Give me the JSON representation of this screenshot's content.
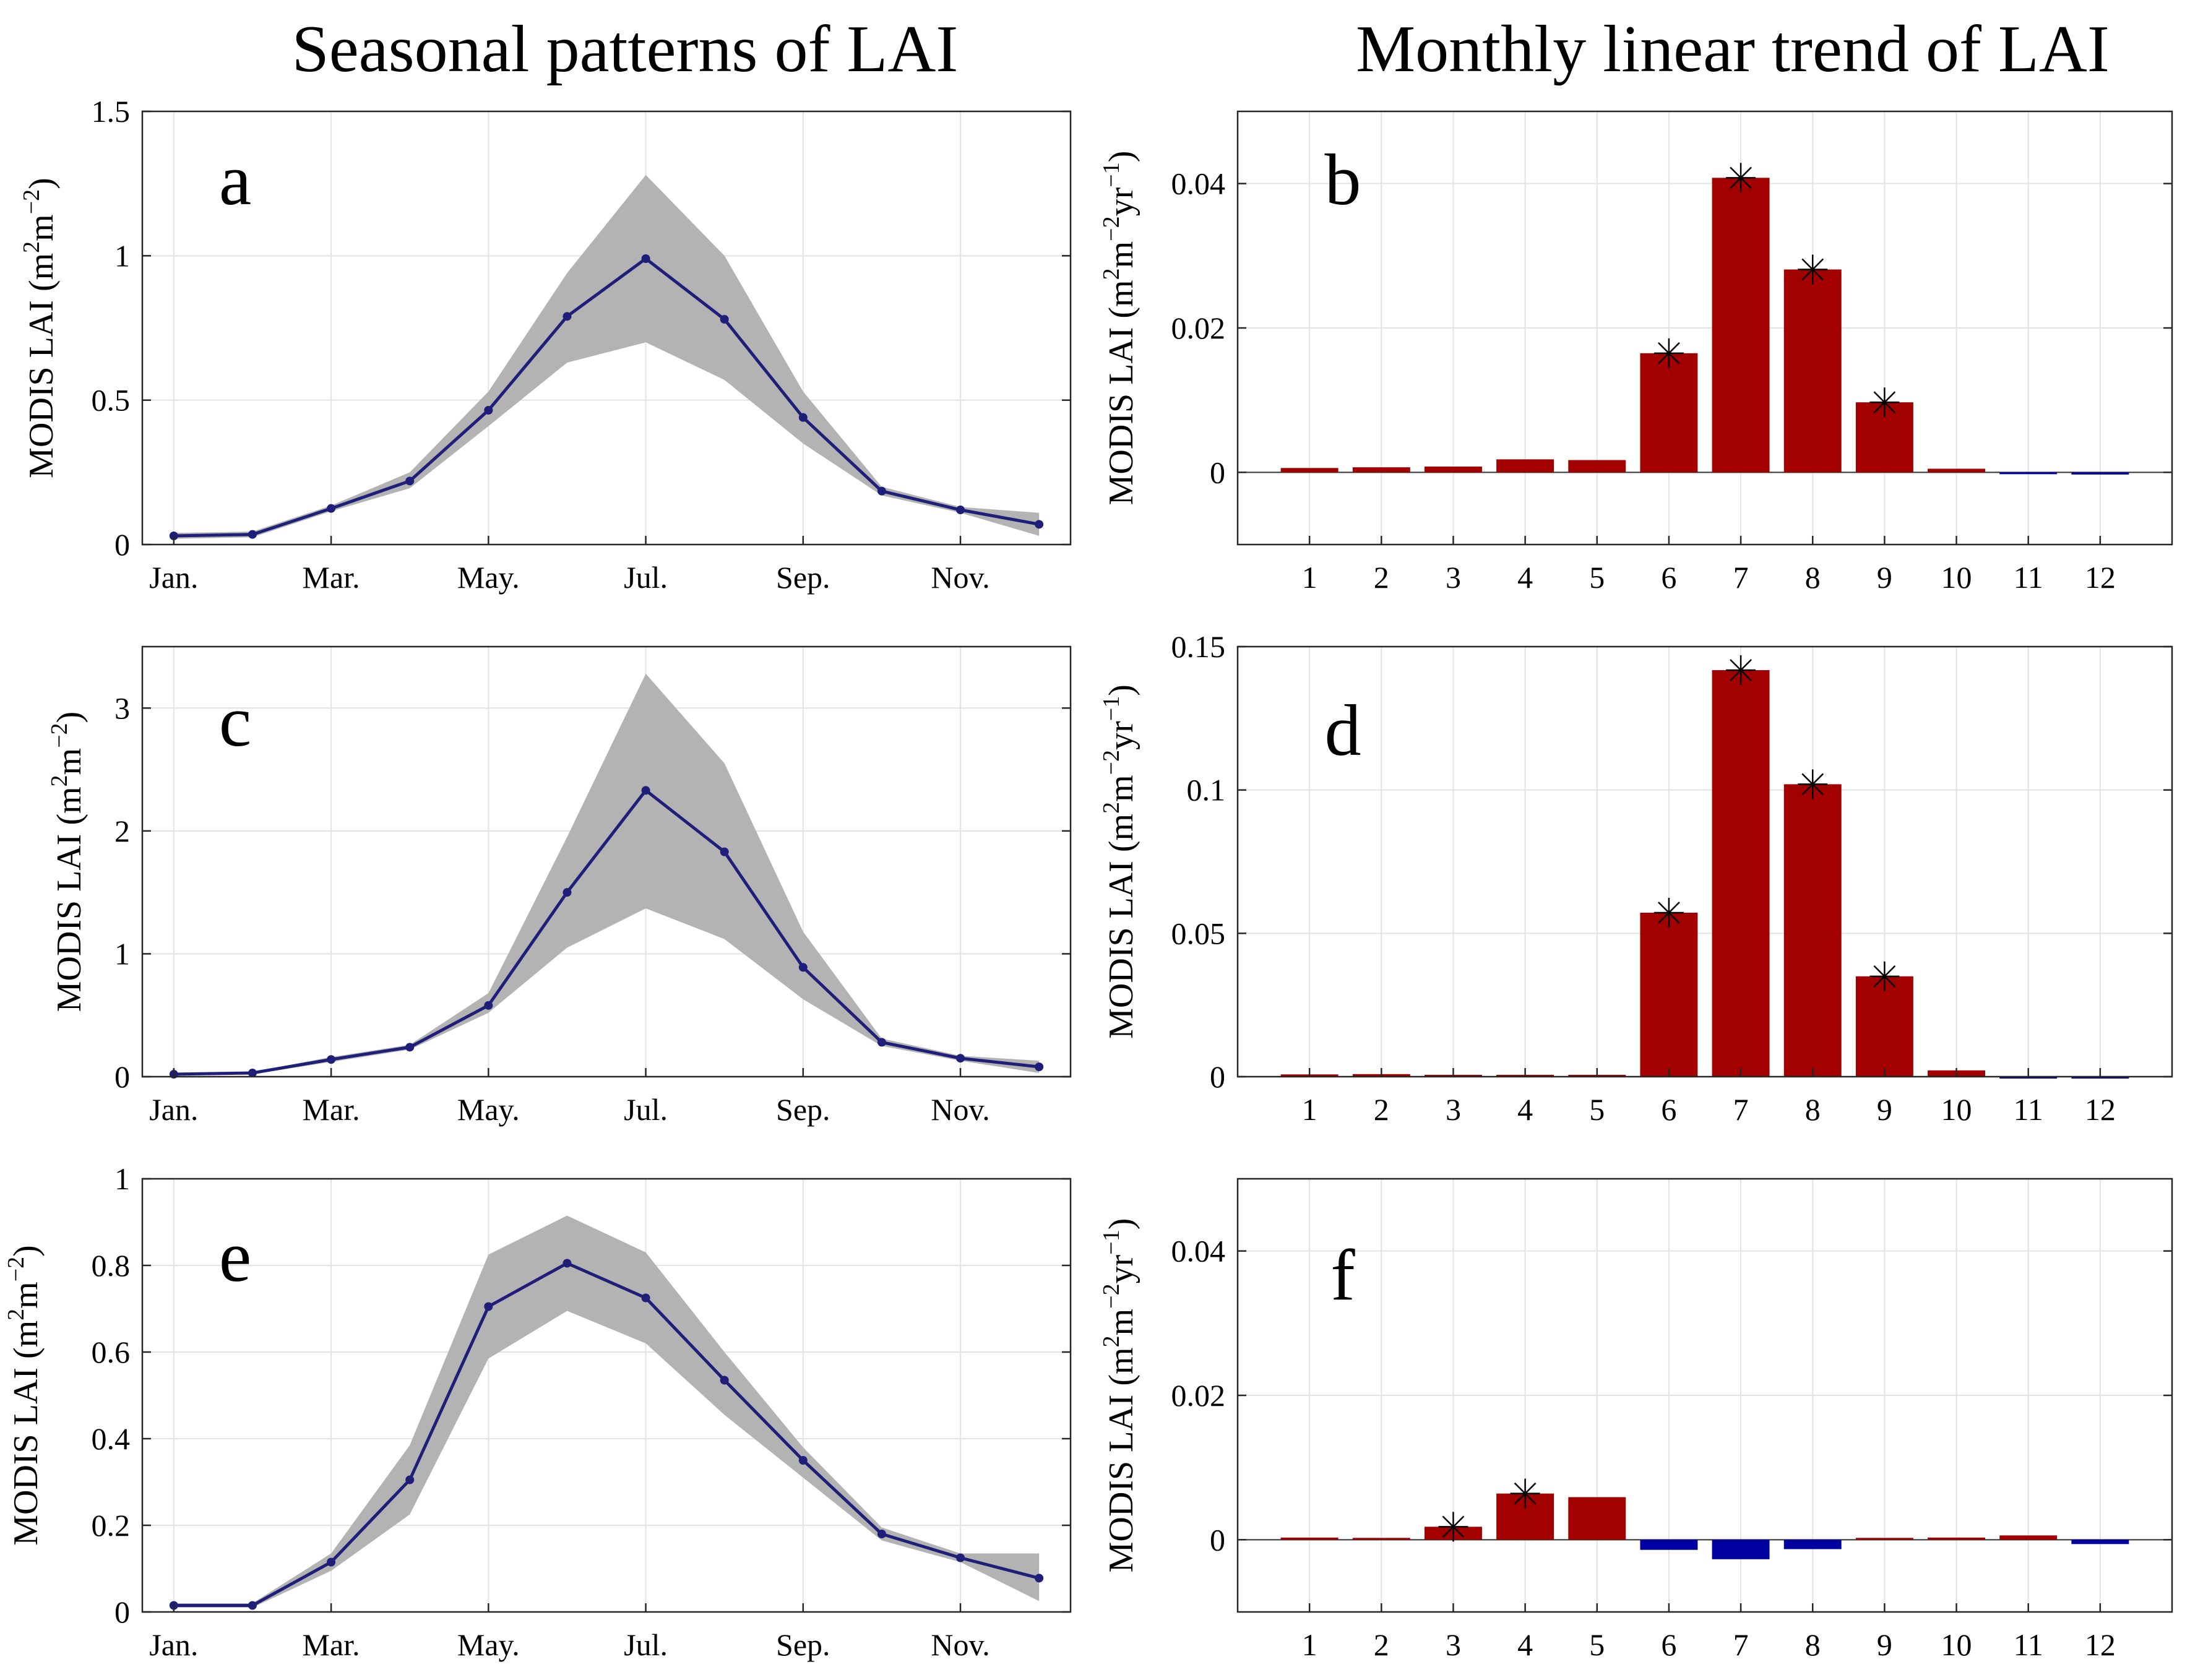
{
  "titles": {
    "left": "Seasonal patterns of LAI",
    "right": "Monthly linear trend of LAI"
  },
  "colors": {
    "line": "#1f1f7a",
    "band": "#b3b3b3",
    "positive_bar": "#a30000",
    "negative_bar": "#0000a0",
    "grid": "#e3e3e3",
    "axis": "#262626"
  },
  "chart_data": [
    {
      "panel": "a",
      "type": "line",
      "title": "Seasonal patterns of LAI",
      "ylabel": "MODIS LAI (m²m⁻²)",
      "ylabel_base": "MODIS LAI (m",
      "ylabel_sup1": "2",
      "ylabel_mid": "m",
      "ylabel_sup2": "−2",
      "ylabel_end": ")",
      "x": [
        1,
        2,
        3,
        4,
        5,
        6,
        7,
        8,
        9,
        10,
        11,
        12
      ],
      "xlim": [
        0.6,
        12.4
      ],
      "xticks": [
        1,
        3,
        5,
        7,
        9,
        11
      ],
      "xticklabels": [
        "Jan.",
        "Mar.",
        "May.",
        "Jul.",
        "Sep.",
        "Nov."
      ],
      "ylim": [
        0,
        1.5
      ],
      "yticks": [
        0,
        0.5,
        1,
        1.5
      ],
      "yticklabels": [
        "0",
        "0.5",
        "1",
        "1.5"
      ],
      "mean": [
        0.03,
        0.035,
        0.125,
        0.22,
        0.465,
        0.79,
        0.99,
        0.78,
        0.44,
        0.185,
        0.12,
        0.07
      ],
      "upper": [
        0.04,
        0.045,
        0.135,
        0.25,
        0.53,
        0.94,
        1.28,
        1.0,
        0.53,
        0.2,
        0.13,
        0.11
      ],
      "lower": [
        0.02,
        0.025,
        0.115,
        0.195,
        0.41,
        0.63,
        0.7,
        0.57,
        0.35,
        0.17,
        0.11,
        0.03
      ]
    },
    {
      "panel": "b",
      "type": "bar",
      "title": "Monthly linear trend of LAI",
      "ylabel": "MODIS LAI (m²m⁻²yr⁻¹)",
      "ylabel_base": "MODIS LAI (m",
      "ylabel_sup1": "2",
      "ylabel_mid": "m",
      "ylabel_sup2": "−2",
      "ylabel_mid2": "yr",
      "ylabel_sup3": "−1",
      "ylabel_end": ")",
      "categories": [
        "1",
        "2",
        "3",
        "4",
        "5",
        "6",
        "7",
        "8",
        "9",
        "10",
        "11",
        "12"
      ],
      "values": [
        0.0006,
        0.0007,
        0.0008,
        0.0018,
        0.0017,
        0.0165,
        0.0408,
        0.0281,
        0.0097,
        0.0005,
        -0.0001,
        -0.0003
      ],
      "significant": [
        false,
        false,
        false,
        false,
        false,
        true,
        true,
        true,
        true,
        false,
        false,
        false
      ],
      "ylim": [
        -0.01,
        0.05
      ],
      "yticks": [
        0,
        0.02,
        0.04
      ],
      "yticklabels": [
        "0",
        "0.02",
        "0.04"
      ]
    },
    {
      "panel": "c",
      "type": "line",
      "ylabel": "MODIS LAI (m²m⁻²)",
      "ylabel_base": "MODIS LAI (m",
      "ylabel_sup1": "2",
      "ylabel_mid": "m",
      "ylabel_sup2": "−2",
      "ylabel_end": ")",
      "x": [
        1,
        2,
        3,
        4,
        5,
        6,
        7,
        8,
        9,
        10,
        11,
        12
      ],
      "xlim": [
        0.6,
        12.4
      ],
      "xticks": [
        1,
        3,
        5,
        7,
        9,
        11
      ],
      "xticklabels": [
        "Jan.",
        "Mar.",
        "May.",
        "Jul.",
        "Sep.",
        "Nov."
      ],
      "ylim": [
        0,
        3.5
      ],
      "yticks": [
        0,
        1,
        2,
        3
      ],
      "yticklabels": [
        "0",
        "1",
        "2",
        "3"
      ],
      "mean": [
        0.02,
        0.03,
        0.14,
        0.24,
        0.58,
        1.5,
        2.33,
        1.83,
        0.89,
        0.28,
        0.15,
        0.08
      ],
      "upper": [
        0.03,
        0.04,
        0.16,
        0.26,
        0.68,
        1.95,
        3.28,
        2.55,
        1.18,
        0.31,
        0.17,
        0.13
      ],
      "lower": [
        0.01,
        0.02,
        0.12,
        0.22,
        0.52,
        1.05,
        1.37,
        1.12,
        0.63,
        0.25,
        0.13,
        0.03
      ]
    },
    {
      "panel": "d",
      "type": "bar",
      "ylabel": "MODIS LAI (m²m⁻²yr⁻¹)",
      "ylabel_base": "MODIS LAI (m",
      "ylabel_sup1": "2",
      "ylabel_mid": "m",
      "ylabel_sup2": "−2",
      "ylabel_mid2": "yr",
      "ylabel_sup3": "−1",
      "ylabel_end": ")",
      "categories": [
        "1",
        "2",
        "3",
        "4",
        "5",
        "6",
        "7",
        "8",
        "9",
        "10",
        "11",
        "12"
      ],
      "values": [
        0.0008,
        0.0009,
        0.0004,
        0.0004,
        0.0001,
        0.0572,
        0.1418,
        0.102,
        0.035,
        0.0022,
        -0.0005,
        -0.0006
      ],
      "significant": [
        false,
        false,
        false,
        false,
        false,
        true,
        true,
        true,
        true,
        false,
        false,
        false
      ],
      "ylim": [
        0,
        0.15
      ],
      "yticks": [
        0,
        0.05,
        0.1,
        0.15
      ],
      "yticklabels": [
        "0",
        "0.05",
        "0.1",
        "0.15"
      ]
    },
    {
      "panel": "e",
      "type": "line",
      "ylabel": "MODIS LAI (m²m⁻²)",
      "ylabel_base": "MODIS LAI (m",
      "ylabel_sup1": "2",
      "ylabel_mid": "m",
      "ylabel_sup2": "−2",
      "ylabel_end": ")",
      "x": [
        1,
        2,
        3,
        4,
        5,
        6,
        7,
        8,
        9,
        10,
        11,
        12
      ],
      "xlim": [
        0.6,
        12.4
      ],
      "xticks": [
        1,
        3,
        5,
        7,
        9,
        11
      ],
      "xticklabels": [
        "Jan.",
        "Mar.",
        "May.",
        "Jul.",
        "Sep.",
        "Nov."
      ],
      "ylim": [
        0,
        1
      ],
      "yticks": [
        0,
        0.2,
        0.4,
        0.6,
        0.8,
        1
      ],
      "yticklabels": [
        "0",
        "0.2",
        "0.4",
        "0.6",
        "0.8",
        "1"
      ],
      "mean": [
        0.015,
        0.015,
        0.115,
        0.305,
        0.705,
        0.805,
        0.725,
        0.535,
        0.35,
        0.18,
        0.125,
        0.078
      ],
      "upper": [
        0.02,
        0.02,
        0.135,
        0.385,
        0.825,
        0.915,
        0.83,
        0.6,
        0.38,
        0.195,
        0.135,
        0.135
      ],
      "lower": [
        0.01,
        0.01,
        0.095,
        0.225,
        0.585,
        0.695,
        0.62,
        0.455,
        0.31,
        0.165,
        0.115,
        0.025
      ]
    },
    {
      "panel": "f",
      "type": "bar",
      "ylabel": "MODIS LAI (m²m⁻²yr⁻¹)",
      "ylabel_base": "MODIS LAI (m",
      "ylabel_sup1": "2",
      "ylabel_mid": "m",
      "ylabel_sup2": "−2",
      "ylabel_mid2": "yr",
      "ylabel_sup3": "−1",
      "ylabel_end": ")",
      "categories": [
        "1",
        "2",
        "3",
        "4",
        "5",
        "6",
        "7",
        "8",
        "9",
        "10",
        "11",
        "12"
      ],
      "values": [
        0.0003,
        0.0002,
        0.0018,
        0.0064,
        0.0059,
        -0.0014,
        -0.0027,
        -0.0013,
        0.0,
        0.0003,
        0.0006,
        -0.0006
      ],
      "significant": [
        false,
        false,
        true,
        true,
        false,
        false,
        false,
        false,
        false,
        false,
        false,
        false
      ],
      "ylim": [
        -0.01,
        0.05
      ],
      "yticks": [
        0,
        0.02,
        0.04
      ],
      "yticklabels": [
        "0",
        "0.02",
        "0.04"
      ]
    }
  ]
}
